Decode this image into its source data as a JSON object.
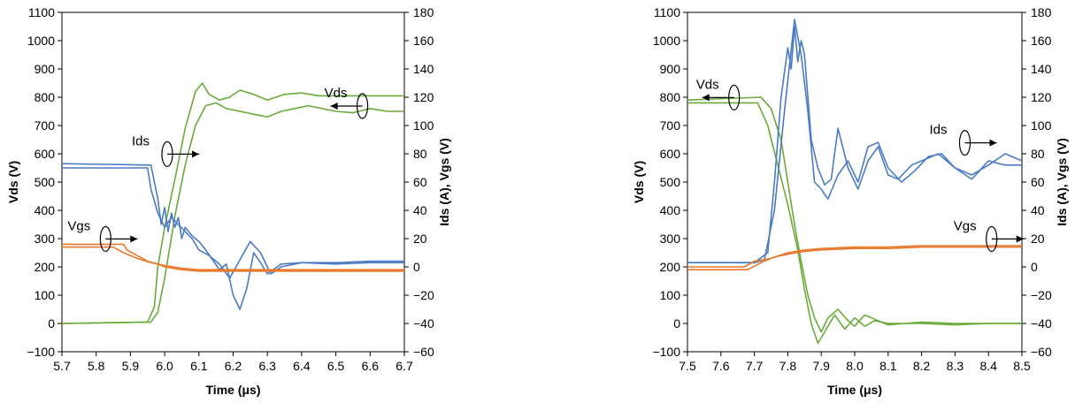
{
  "chart_data": [
    {
      "type": "line",
      "title": "",
      "xlabel": "Time (μs)",
      "ylabel": "Vds (V)",
      "y2label": "Ids (A), Vgs (V)",
      "xlim": [
        5.7,
        6.7
      ],
      "ylim": [
        -100,
        1100
      ],
      "y2lim": [
        -60,
        180
      ],
      "xticks": [
        "5.7",
        "5.8",
        "5.9",
        "6.0",
        "6.1",
        "6.2",
        "6.3",
        "6.4",
        "6.5",
        "6.6",
        "6.7"
      ],
      "yticks": [
        "−100",
        "0",
        "100",
        "200",
        "300",
        "400",
        "500",
        "600",
        "700",
        "800",
        "900",
        "1000",
        "1100"
      ],
      "y2ticks": [
        "−60",
        "−40",
        "−20",
        "0",
        "20",
        "40",
        "60",
        "80",
        "100",
        "120",
        "140",
        "160",
        "180"
      ],
      "grid": false,
      "annotations": [
        {
          "text": "Vds",
          "x": 6.5,
          "y": 800,
          "arrow": "left"
        },
        {
          "text": "Ids",
          "x": 5.93,
          "y": 630,
          "arrow": "right"
        },
        {
          "text": "Vgs",
          "x": 5.75,
          "y": 330,
          "arrow": "right"
        }
      ],
      "series": [
        {
          "name": "Vds",
          "color": "#6aaa3a",
          "axis": "left",
          "x": [
            5.7,
            5.95,
            5.97,
            5.98,
            6.0,
            6.03,
            6.06,
            6.09,
            6.11,
            6.13,
            6.16,
            6.19,
            6.22,
            6.26,
            6.3,
            6.35,
            6.4,
            6.45,
            6.5,
            6.55,
            6.6,
            6.7
          ],
          "y": [
            0,
            5,
            60,
            200,
            340,
            510,
            690,
            820,
            850,
            810,
            790,
            800,
            825,
            810,
            790,
            810,
            815,
            805,
            805,
            805,
            805,
            805
          ]
        },
        {
          "name": "Vds",
          "color": "#6aaa3a",
          "axis": "left",
          "x": [
            5.7,
            5.96,
            5.98,
            6.0,
            6.03,
            6.06,
            6.09,
            6.12,
            6.15,
            6.18,
            6.22,
            6.26,
            6.3,
            6.34,
            6.38,
            6.42,
            6.46,
            6.5,
            6.55,
            6.6,
            6.65,
            6.7
          ],
          "y": [
            0,
            5,
            40,
            160,
            380,
            560,
            700,
            770,
            780,
            760,
            750,
            740,
            730,
            750,
            760,
            770,
            760,
            750,
            745,
            760,
            750,
            750
          ]
        },
        {
          "name": "Ids",
          "color": "#4a7bc4",
          "axis": "right",
          "x": [
            5.7,
            5.96,
            5.97,
            5.98,
            5.99,
            6.0,
            6.01,
            6.02,
            6.03,
            6.04,
            6.05,
            6.06,
            6.08,
            6.1,
            6.12,
            6.14,
            6.16,
            6.18,
            6.2,
            6.22,
            6.24,
            6.26,
            6.28,
            6.3,
            6.34,
            6.4,
            6.5,
            6.6,
            6.7
          ],
          "y": [
            73,
            72,
            60,
            48,
            30,
            42,
            25,
            38,
            28,
            35,
            20,
            28,
            22,
            18,
            12,
            5,
            -2,
            2,
            -20,
            -30,
            -15,
            10,
            3,
            -5,
            2,
            3,
            3,
            4,
            4
          ]
        },
        {
          "name": "Ids",
          "color": "#4a7bc4",
          "axis": "right",
          "x": [
            5.7,
            5.95,
            5.96,
            5.98,
            6.0,
            6.02,
            6.04,
            6.06,
            6.08,
            6.1,
            6.13,
            6.16,
            6.19,
            6.22,
            6.25,
            6.28,
            6.31,
            6.34,
            6.4,
            6.5,
            6.6,
            6.7
          ],
          "y": [
            70,
            70,
            55,
            38,
            28,
            35,
            30,
            25,
            20,
            12,
            8,
            2,
            -8,
            5,
            18,
            10,
            -5,
            0,
            3,
            2,
            3,
            3
          ]
        },
        {
          "name": "Vgs",
          "color": "#e8782a",
          "axis": "right",
          "x": [
            5.7,
            5.88,
            5.89,
            5.92,
            5.95,
            5.98,
            6.0,
            6.05,
            6.1,
            6.2,
            6.4,
            6.7
          ],
          "y": [
            16,
            16,
            12,
            8,
            4,
            2,
            0,
            -2,
            -3,
            -3,
            -3,
            -3
          ]
        },
        {
          "name": "Vgs",
          "color": "#e8782a",
          "axis": "right",
          "x": [
            5.7,
            5.85,
            5.88,
            5.92,
            5.96,
            6.0,
            6.05,
            6.1,
            6.2,
            6.4,
            6.7
          ],
          "y": [
            14,
            14,
            10,
            6,
            3,
            1,
            -1,
            -2,
            -2,
            -2,
            -2
          ]
        }
      ]
    },
    {
      "type": "line",
      "title": "",
      "xlabel": "Time (μs)",
      "ylabel": "Vds (V)",
      "y2label": "Ids (A), Vgs (V)",
      "xlim": [
        7.5,
        8.5
      ],
      "ylim": [
        -100,
        1100
      ],
      "y2lim": [
        -60,
        180
      ],
      "xticks": [
        "7.5",
        "7.6",
        "7.7",
        "7.8",
        "7.9",
        "8.0",
        "8.1",
        "8.2",
        "8.3",
        "8.4",
        "8.5"
      ],
      "yticks": [
        "−100",
        "0",
        "100",
        "200",
        "300",
        "400",
        "500",
        "600",
        "700",
        "800",
        "900",
        "1000",
        "1100"
      ],
      "y2ticks": [
        "−60",
        "−40",
        "−20",
        "0",
        "20",
        "40",
        "60",
        "80",
        "100",
        "120",
        "140",
        "160",
        "180"
      ],
      "grid": false,
      "annotations": [
        {
          "text": "Vds",
          "x": 7.56,
          "y": 830,
          "arrow": "left"
        },
        {
          "text": "Ids",
          "x": 8.25,
          "y": 670,
          "arrow": "right"
        },
        {
          "text": "Vgs",
          "x": 8.33,
          "y": 330,
          "arrow": "right"
        }
      ],
      "series": [
        {
          "name": "Vds",
          "color": "#6aaa3a",
          "axis": "left",
          "x": [
            7.5,
            7.72,
            7.75,
            7.78,
            7.8,
            7.82,
            7.84,
            7.86,
            7.88,
            7.9,
            7.92,
            7.95,
            7.98,
            8.0,
            8.03,
            8.06,
            8.1,
            8.15,
            8.2,
            8.3,
            8.4,
            8.5
          ],
          "y": [
            790,
            800,
            760,
            650,
            500,
            350,
            220,
            100,
            20,
            -30,
            20,
            50,
            10,
            -10,
            30,
            15,
            -5,
            0,
            5,
            0,
            0,
            0
          ]
        },
        {
          "name": "Vds",
          "color": "#6aaa3a",
          "axis": "left",
          "x": [
            7.5,
            7.71,
            7.74,
            7.77,
            7.8,
            7.83,
            7.85,
            7.87,
            7.89,
            7.91,
            7.94,
            7.97,
            8.0,
            8.03,
            8.06,
            8.1,
            8.2,
            8.3,
            8.4,
            8.5
          ],
          "y": [
            780,
            780,
            700,
            560,
            420,
            260,
            120,
            0,
            -70,
            -30,
            30,
            -20,
            20,
            -10,
            10,
            0,
            0,
            -5,
            0,
            0
          ]
        },
        {
          "name": "Ids",
          "color": "#4a7bc4",
          "axis": "right",
          "x": [
            7.5,
            7.7,
            7.74,
            7.76,
            7.78,
            7.8,
            7.81,
            7.82,
            7.83,
            7.84,
            7.85,
            7.86,
            7.87,
            7.89,
            7.91,
            7.93,
            7.95,
            7.98,
            8.01,
            8.04,
            8.07,
            8.1,
            8.13,
            8.17,
            8.2,
            8.25,
            8.3,
            8.35,
            8.4,
            8.45,
            8.5
          ],
          "y": [
            3,
            3,
            10,
            60,
            120,
            155,
            140,
            170,
            145,
            160,
            150,
            120,
            90,
            70,
            58,
            62,
            98,
            70,
            55,
            75,
            85,
            65,
            62,
            72,
            75,
            80,
            70,
            65,
            72,
            80,
            75
          ]
        },
        {
          "name": "Ids",
          "color": "#4a7bc4",
          "axis": "right",
          "x": [
            7.5,
            7.7,
            7.73,
            7.76,
            7.79,
            7.82,
            7.84,
            7.86,
            7.88,
            7.9,
            7.92,
            7.95,
            7.98,
            8.01,
            8.04,
            8.07,
            8.1,
            8.14,
            8.18,
            8.22,
            8.26,
            8.3,
            8.35,
            8.4,
            8.45,
            8.5
          ],
          "y": [
            3,
            3,
            5,
            40,
            110,
            175,
            150,
            110,
            60,
            55,
            48,
            65,
            75,
            60,
            85,
            88,
            70,
            60,
            68,
            78,
            80,
            70,
            62,
            75,
            72,
            72
          ]
        },
        {
          "name": "Vgs",
          "color": "#e8782a",
          "axis": "right",
          "x": [
            7.5,
            7.67,
            7.7,
            7.75,
            7.8,
            7.85,
            7.9,
            8.0,
            8.1,
            8.2,
            8.3,
            8.5
          ],
          "y": [
            0,
            0,
            4,
            6,
            10,
            12,
            13,
            14,
            14,
            15,
            15,
            15
          ]
        },
        {
          "name": "Vgs",
          "color": "#e8782a",
          "axis": "right",
          "x": [
            7.5,
            7.68,
            7.72,
            7.76,
            7.8,
            7.85,
            7.9,
            8.0,
            8.1,
            8.2,
            8.3,
            8.5
          ],
          "y": [
            -2,
            -2,
            3,
            7,
            9,
            11,
            12,
            13,
            13,
            14,
            14,
            14
          ]
        }
      ]
    }
  ]
}
